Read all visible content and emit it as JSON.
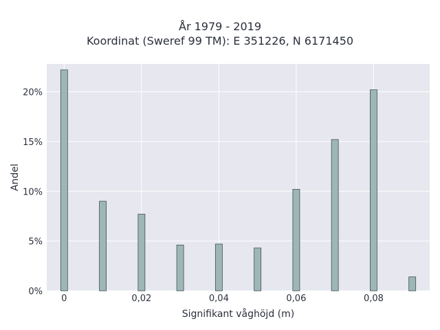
{
  "chart_data": {
    "type": "bar",
    "title_line1": "År 1979 - 2019",
    "title_line2": "Koordinat (Sweref 99 TM): E 351226, N 6171450",
    "xlabel": "Signifikant våghöjd (m)",
    "ylabel": "Andel",
    "x": [
      0,
      0.01,
      0.02,
      0.03,
      0.04,
      0.05,
      0.06,
      0.07,
      0.08,
      0.09
    ],
    "values": [
      22.2,
      9.0,
      7.7,
      4.6,
      4.7,
      4.3,
      10.2,
      15.2,
      20.2,
      1.4
    ],
    "xlim": [
      -0.0045,
      0.0945
    ],
    "ylim": [
      0,
      22.8
    ],
    "xticks": [
      0,
      0.02,
      0.04,
      0.06,
      0.08
    ],
    "xtick_labels": [
      "0",
      "0,02",
      "0,04",
      "0,06",
      "0,08"
    ],
    "yticks": [
      0,
      5,
      10,
      15,
      20
    ],
    "ytick_labels": [
      "0%",
      "5%",
      "10%",
      "15%",
      "20%"
    ],
    "grid": true,
    "colors": {
      "bar_fill": "#9fb6b7",
      "bar_edge": "#3d4f4e",
      "plot_bg": "#e6e7ef",
      "grid": "#ffffff"
    }
  }
}
